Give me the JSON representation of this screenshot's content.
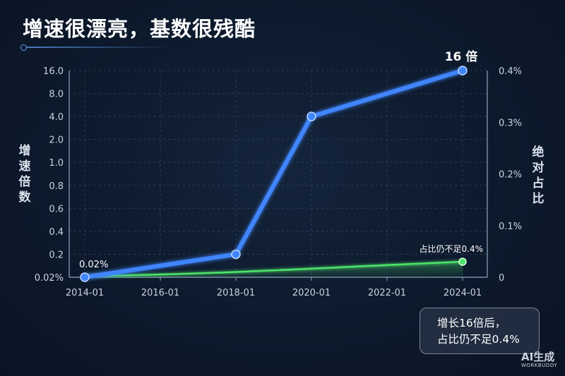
{
  "title": "增速很漂亮，基数很残酷",
  "chart_data": {
    "type": "line",
    "x": [
      "2014-01",
      "2018-01",
      "2020-01",
      "2024-01"
    ],
    "x_ticks": [
      "2014-01",
      "2016-01",
      "2018-01",
      "2020-01",
      "2022-01",
      "2024-01"
    ],
    "left_axis": {
      "label": "增速倍数",
      "scale": "log",
      "ticks": [
        "0.02%",
        "0.2",
        "0.4",
        "0.6",
        "0.8",
        "1.0",
        "2.0",
        "4.0",
        "8.0",
        "16.0"
      ]
    },
    "right_axis": {
      "label": "绝对占比",
      "ticks": [
        "0",
        "0.1%",
        "0.2%",
        "0.3%",
        "0.4%"
      ],
      "ylim": [
        0,
        0.4
      ]
    },
    "series": [
      {
        "name": "",
        "axis": "left",
        "color": "#3f86ff",
        "x": [
          "2014-01",
          "2018-01",
          "2020-01",
          "2024-01"
        ],
        "values": [
          0.02,
          0.2,
          4.0,
          16.0
        ]
      },
      {
        "name": "",
        "axis": "right",
        "color": "#4de36a",
        "x": [
          "2014-01",
          "2024-01"
        ],
        "values": [
          0.0,
          0.03
        ]
      }
    ],
    "annotations": {
      "start_label": "0.02%",
      "end_label_blue": "16 倍",
      "end_label_green": "占比仍不足0.4%"
    },
    "grid": true
  },
  "note": {
    "line1": "增长16倍后，",
    "line2": "占比仍不足0.4%"
  },
  "watermark": {
    "main": "AI生成",
    "sub": "WORKBUDDY"
  }
}
